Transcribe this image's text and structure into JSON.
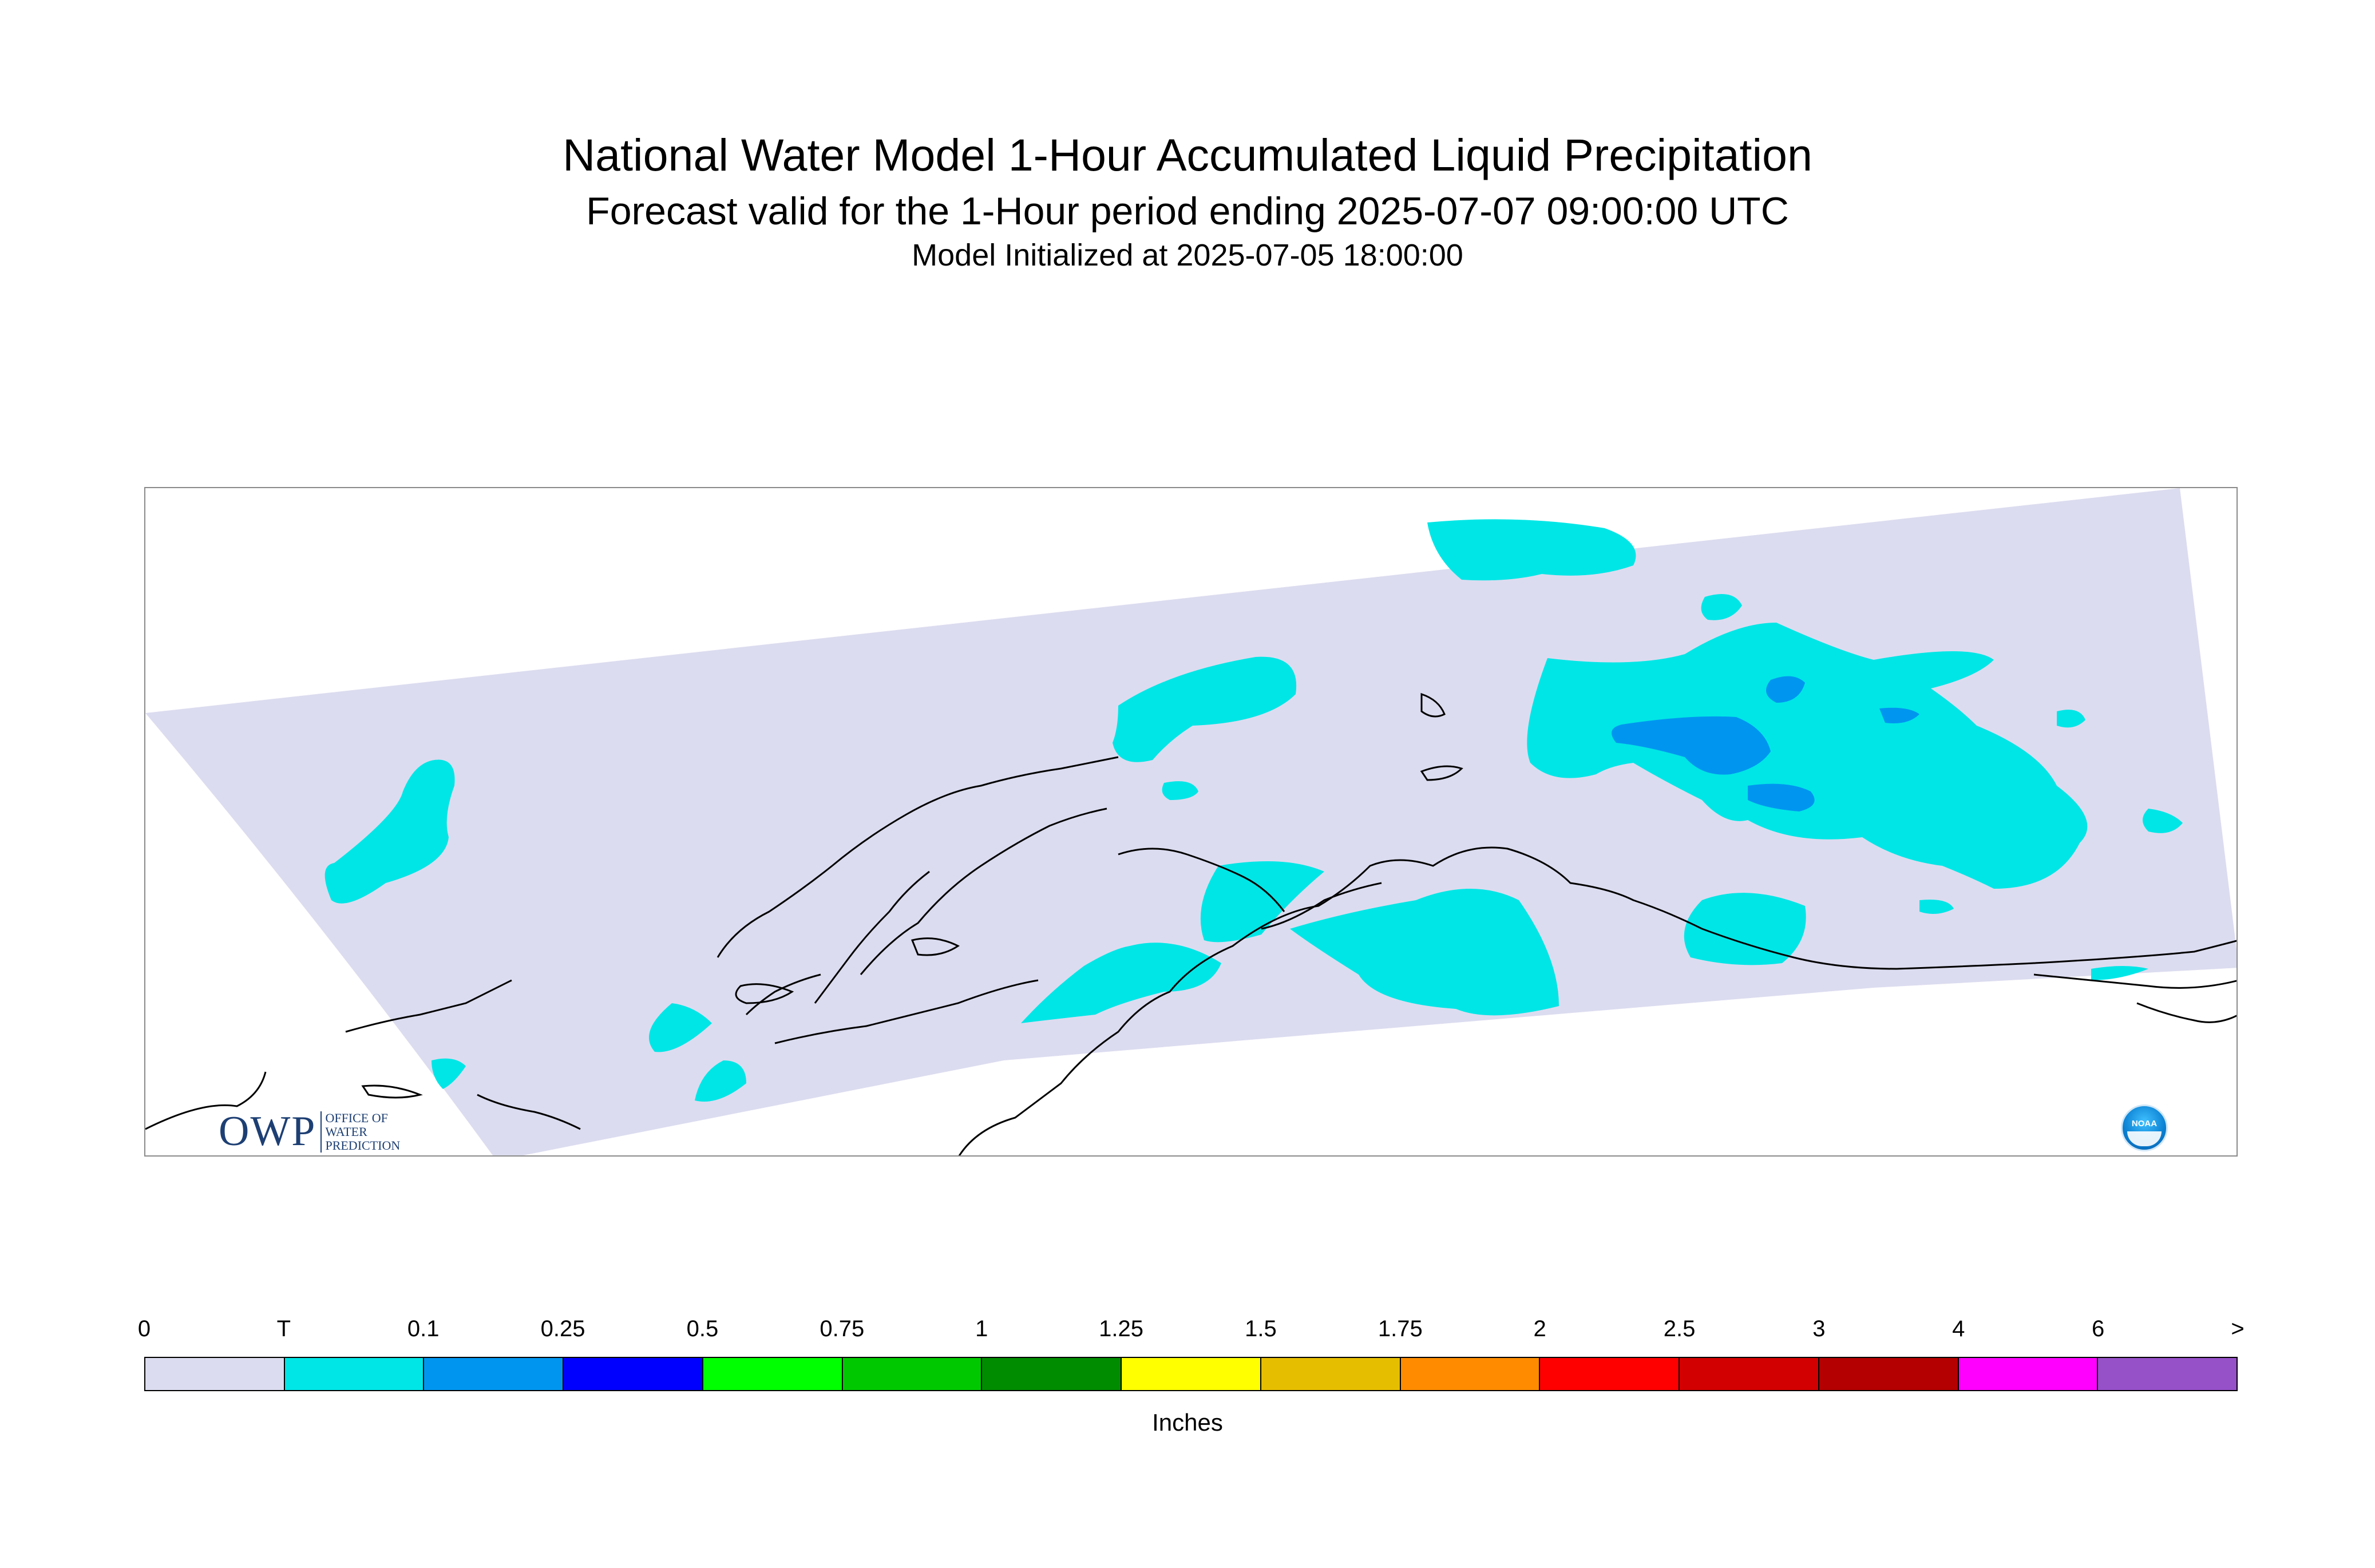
{
  "title": "National Water Model 1-Hour Accumulated Liquid Precipitation",
  "subtitle": "Forecast valid for the 1-Hour period ending 2025-07-07 09:00:00 UTC",
  "init_line": "Model Initialized at 2025-07-05 18:00:00",
  "logos": {
    "owp_big": "OWP",
    "owp_small_lines": [
      "OFFICE OF",
      "WATER",
      "PREDICTION"
    ],
    "noaa": "NOAA"
  },
  "legend": {
    "units": "Inches",
    "ticks": [
      "0",
      "T",
      "0.1",
      "0.25",
      "0.5",
      "0.75",
      "1",
      "1.25",
      "1.5",
      "1.75",
      "2",
      "2.5",
      "3",
      "4",
      "6",
      ">"
    ],
    "colors": [
      "#dcdcf0",
      "#00e6e6",
      "#0096f0",
      "#0000ff",
      "#00ff00",
      "#00c800",
      "#008c00",
      "#ffff00",
      "#e6be00",
      "#ff8c00",
      "#ff0000",
      "#d20000",
      "#b40000",
      "#ff00ff",
      "#9650c8"
    ]
  },
  "colors": {
    "domain": "#dcdcf0",
    "trace": "#00e6e6",
    "light": "#0096f0",
    "coast": "#000000"
  }
}
